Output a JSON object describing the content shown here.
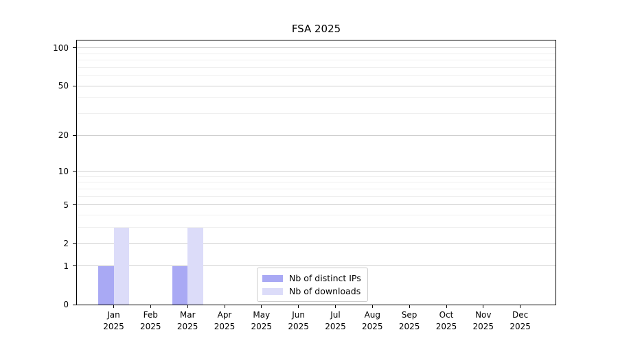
{
  "chart_data": {
    "type": "bar",
    "title": "FSA 2025",
    "xlabel": "",
    "ylabel": "",
    "yscale": "log1p",
    "ylim": [
      0,
      118
    ],
    "grid": true,
    "legend_position": "bottom-center",
    "categories": [
      {
        "month": "Jan",
        "year": "2025"
      },
      {
        "month": "Feb",
        "year": "2025"
      },
      {
        "month": "Mar",
        "year": "2025"
      },
      {
        "month": "Apr",
        "year": "2025"
      },
      {
        "month": "May",
        "year": "2025"
      },
      {
        "month": "Jun",
        "year": "2025"
      },
      {
        "month": "Jul",
        "year": "2025"
      },
      {
        "month": "Aug",
        "year": "2025"
      },
      {
        "month": "Sep",
        "year": "2025"
      },
      {
        "month": "Oct",
        "year": "2025"
      },
      {
        "month": "Nov",
        "year": "2025"
      },
      {
        "month": "Dec",
        "year": "2025"
      }
    ],
    "series": [
      {
        "name": "Nb of distinct IPs",
        "color": "#a9a9f4",
        "values": [
          1,
          0,
          1,
          0,
          0,
          0,
          0,
          0,
          0,
          0,
          0,
          0
        ]
      },
      {
        "name": "Nb of downloads",
        "color": "#dcdcf9",
        "values": [
          3,
          0,
          3,
          0,
          0,
          0,
          0,
          0,
          0,
          0,
          0,
          0
        ]
      }
    ],
    "y_major_ticks": [
      0,
      1,
      2,
      5,
      10,
      20,
      50,
      100
    ],
    "y_minor_gridlines": [
      3,
      4,
      6,
      7,
      8,
      9,
      30,
      40,
      60,
      70,
      80,
      90
    ],
    "colors": {
      "major_grid": "#cfcfcf",
      "minor_grid": "#efefef",
      "axis": "#000000",
      "legend_border": "#cccccc"
    }
  }
}
